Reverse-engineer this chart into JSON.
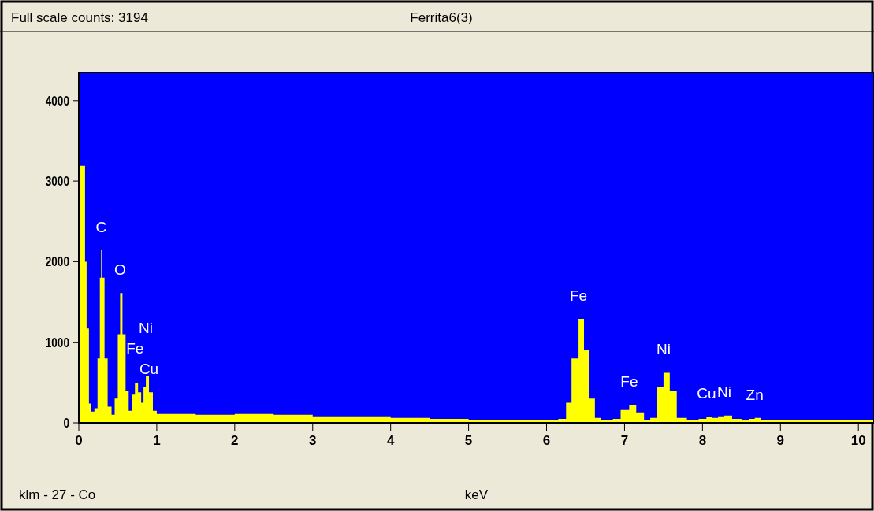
{
  "chart_data": {
    "type": "area",
    "title": "Ferrita6(3)",
    "xlabel": "keV",
    "annotations": [
      "Full scale counts: 3194",
      "klm - 27 - Co",
      {
        "text": "C",
        "x": 0.286,
        "y": 2140
      },
      {
        "text": "O",
        "x": 0.53,
        "y": 1610
      },
      {
        "text": "Cu",
        "x": 0.9,
        "y": 380
      },
      {
        "text": "Fe",
        "x": 0.72,
        "y": 490
      },
      {
        "text": "Ni",
        "x": 0.86,
        "y": 580
      },
      {
        "text": "Fe",
        "x": 6.41,
        "y": 1290
      },
      {
        "text": "Fe",
        "x": 7.06,
        "y": 220
      },
      {
        "text": "Ni",
        "x": 7.5,
        "y": 620
      },
      {
        "text": "Cu",
        "x": 8.05,
        "y": 70
      },
      {
        "text": "Ni",
        "x": 8.28,
        "y": 90
      },
      {
        "text": "Zn",
        "x": 8.67,
        "y": 60
      }
    ],
    "x": [
      0,
      0.07,
      0.08,
      0.1,
      0.13,
      0.16,
      0.2,
      0.24,
      0.27,
      0.286,
      0.3,
      0.33,
      0.37,
      0.42,
      0.46,
      0.5,
      0.53,
      0.56,
      0.6,
      0.64,
      0.68,
      0.72,
      0.76,
      0.8,
      0.83,
      0.86,
      0.9,
      0.95,
      1.0,
      1.5,
      2.0,
      2.5,
      3.0,
      3.5,
      4.0,
      4.5,
      5.0,
      5.5,
      6.0,
      6.15,
      6.25,
      6.32,
      6.41,
      6.48,
      6.55,
      6.62,
      6.7,
      6.85,
      6.95,
      7.06,
      7.15,
      7.25,
      7.33,
      7.42,
      7.5,
      7.58,
      7.67,
      7.8,
      7.95,
      8.05,
      8.12,
      8.2,
      8.28,
      8.38,
      8.5,
      8.6,
      8.67,
      8.75,
      9.0,
      9.5,
      10.0,
      10.2
    ],
    "series": [
      {
        "color": "#ffff00",
        "values": [
          3190,
          3190,
          2000,
          1170,
          240,
          140,
          180,
          800,
          1800,
          2140,
          1800,
          800,
          200,
          100,
          300,
          1100,
          1610,
          1100,
          400,
          150,
          350,
          490,
          380,
          250,
          450,
          580,
          380,
          150,
          110,
          100,
          110,
          100,
          80,
          80,
          60,
          50,
          40,
          40,
          40,
          50,
          250,
          800,
          1290,
          900,
          300,
          60,
          40,
          50,
          160,
          220,
          130,
          40,
          60,
          450,
          620,
          400,
          60,
          40,
          50,
          70,
          60,
          80,
          90,
          50,
          40,
          50,
          60,
          40,
          30,
          30,
          30,
          30
        ]
      }
    ],
    "xlim": [
      0,
      10.2
    ],
    "ylim": [
      0,
      4350
    ],
    "xticks": [
      0,
      1,
      2,
      3,
      4,
      5,
      6,
      7,
      8,
      9,
      10
    ],
    "yticks": [
      0,
      1000,
      2000,
      3000,
      4000
    ],
    "grid": false
  }
}
